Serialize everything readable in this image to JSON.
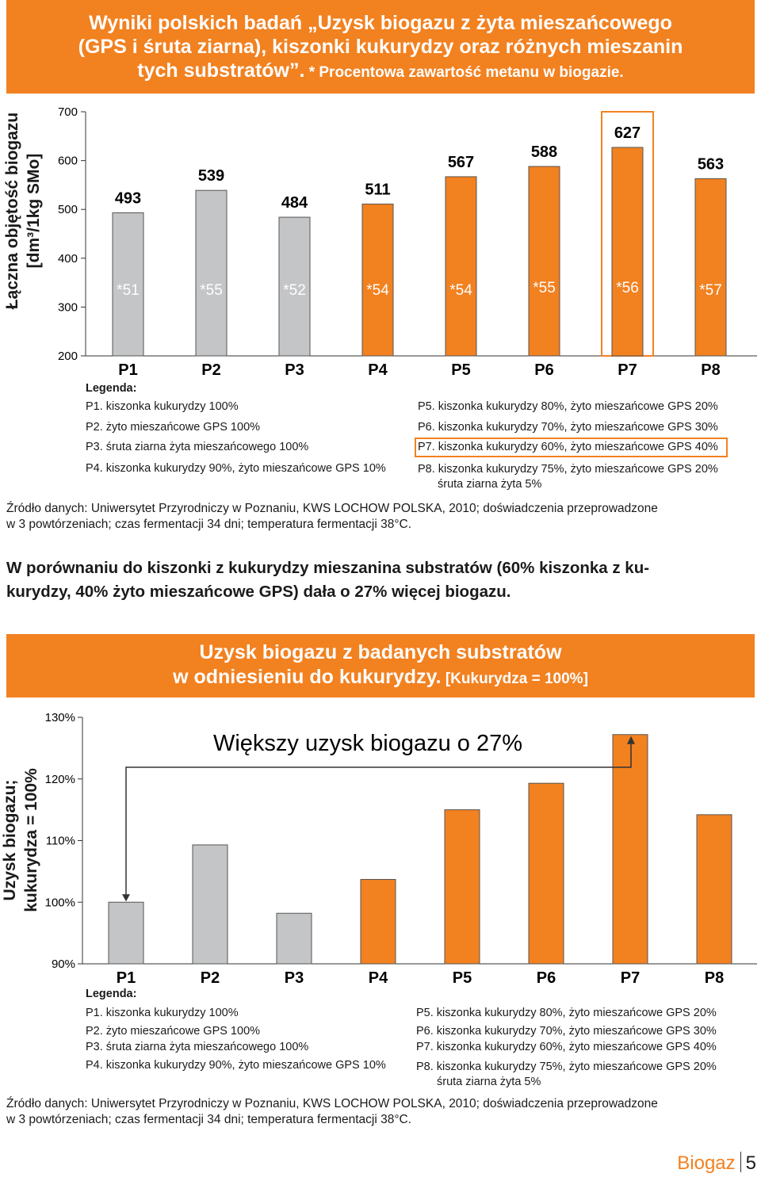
{
  "colors": {
    "accent": "#f28120",
    "gray": "#c4c5c6",
    "text": "#1a1a1a"
  },
  "banner1": {
    "line1": "Wyniki polskich badań „Uzysk biogazu z żyta mieszańcowego",
    "line2": "(GPS i śruta ziarna), kiszonki kukurydzy oraz różnych mieszanin",
    "line3": "tych substratów”.",
    "note": " * Procentowa zawartość metanu w biogazie."
  },
  "chart1": {
    "ylabel_line1": "Łączna objętość biogazu",
    "ylabel_line2": "[dm³/1kg SMo]"
  },
  "legend": {
    "title": "Legenda:",
    "items": [
      "P1. kiszonka kukurydzy 100%",
      "P2. żyto mieszańcowe GPS 100%",
      "P3. śruta ziarna żyta mieszańcowego 100%",
      "P4. kiszonka kukurydzy 90%, żyto mieszańcowe GPS 10%",
      "P5. kiszonka kukurydzy 80%, żyto mieszańcowe GPS 20%",
      "P6. kiszonka kukurydzy 70%, żyto mieszańcowe GPS 30%",
      "P7. kiszonka kukurydzy 60%, żyto mieszańcowe GPS 40%",
      "P8. kiszonka kukurydzy 75%, żyto mieszańcowe GPS 20%"
    ],
    "p8_line2": "śruta ziarna żyta 5%"
  },
  "source": {
    "line1": "Źródło danych: Uniwersytet Przyrodniczy w Poznaniu, KWS LOCHOW POLSKA, 2010; doświadczenia przeprowadzone",
    "line2": "w 3 powtórzeniach; czas fermentacji 34 dni; temperatura fermentacji 38°C."
  },
  "conclusion": {
    "line1": "W porównaniu do kiszonki z kukurydzy mieszanina substratów (60% kiszonka z ku-",
    "line2": "kurydzy, 40% żyto mieszańcowe GPS) dała o 27% więcej biogazu."
  },
  "banner2": {
    "line1": "Uzysk biogazu z badanych substratów",
    "line2": "w odniesieniu do kukurydzy.",
    "note": " [Kukurydza = 100%]"
  },
  "chart2": {
    "ylabel_line1": "Uzysk biogazu;",
    "ylabel_line2": "kukurydza = 100%",
    "annotation": "Większy uzysk biogazu o 27%"
  },
  "footer": {
    "word": "Biogaz",
    "page": "5"
  },
  "chart_data": [
    {
      "type": "bar",
      "title": "Wyniki polskich badań „Uzysk biogazu z żyta mieszańcowego (GPS i śruta ziarna), kiszonki kukurydzy oraz różnych mieszanin tych substratów”.",
      "ylabel": "Łączna objętość biogazu [dm³/1kg SMo]",
      "categories": [
        "P1",
        "P2",
        "P3",
        "P4",
        "P5",
        "P6",
        "P7",
        "P8"
      ],
      "values": [
        493,
        539,
        484,
        511,
        567,
        588,
        627,
        563
      ],
      "value_labels": [
        "493",
        "539",
        "484",
        "511",
        "567",
        "588",
        "627",
        "563"
      ],
      "methane_labels": [
        "*51",
        "*55",
        "*52",
        "*54",
        "*54",
        "*55",
        "*56",
        "*57"
      ],
      "colors": [
        "#c4c5c6",
        "#c4c5c6",
        "#c4c5c6",
        "#f28120",
        "#f28120",
        "#f28120",
        "#f28120",
        "#f28120"
      ],
      "ylim": [
        200,
        700
      ],
      "yticks": [
        200,
        300,
        400,
        500,
        600,
        700
      ],
      "highlight": "P7"
    },
    {
      "type": "bar",
      "title": "Uzysk biogazu z badanych substratów w odniesieniu do kukurydzy. [Kukurydza = 100%]",
      "ylabel": "Uzysk biogazu; kukurydza = 100%",
      "categories": [
        "P1",
        "P2",
        "P3",
        "P4",
        "P5",
        "P6",
        "P7",
        "P8"
      ],
      "values": [
        100,
        109.3,
        98.2,
        103.7,
        115,
        119.3,
        127.2,
        114.2
      ],
      "colors": [
        "#c4c5c6",
        "#c4c5c6",
        "#c4c5c6",
        "#f28120",
        "#f28120",
        "#f28120",
        "#f28120",
        "#f28120"
      ],
      "ylim": [
        90,
        130
      ],
      "yticks": [
        90,
        100,
        110,
        120,
        130
      ],
      "ytick_labels": [
        "90%",
        "100%",
        "110%",
        "120%",
        "130%"
      ],
      "annotation": "Większy uzysk biogazu o 27%"
    }
  ]
}
